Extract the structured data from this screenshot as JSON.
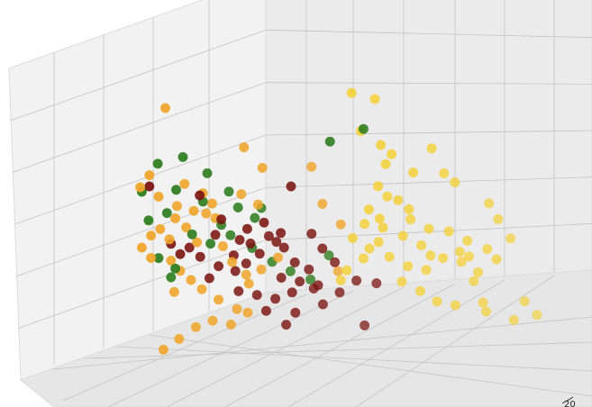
{
  "chart_data": {
    "type": "scatter",
    "title": "",
    "xlabel": "",
    "ylabel": "",
    "zlabel": "",
    "projection": "3d",
    "grid": true,
    "legend": "none",
    "visible_tick_labels": [
      "20"
    ],
    "series": [
      {
        "color": "#2e7d1f",
        "points": [
          [
            0.62,
            0.12,
            0.78
          ],
          [
            0.7,
            0.16,
            0.82
          ],
          [
            0.18,
            0.05,
            0.7
          ],
          [
            0.24,
            0.08,
            0.72
          ],
          [
            0.3,
            0.1,
            0.66
          ],
          [
            0.22,
            0.09,
            0.6
          ],
          [
            0.2,
            0.07,
            0.52
          ],
          [
            0.16,
            0.03,
            0.5
          ],
          [
            0.28,
            0.14,
            0.55
          ],
          [
            0.34,
            0.18,
            0.58
          ],
          [
            0.36,
            0.2,
            0.52
          ],
          [
            0.4,
            0.22,
            0.48
          ],
          [
            0.32,
            0.18,
            0.46
          ],
          [
            0.26,
            0.1,
            0.44
          ],
          [
            0.3,
            0.14,
            0.4
          ],
          [
            0.34,
            0.2,
            0.42
          ],
          [
            0.38,
            0.28,
            0.36
          ],
          [
            0.42,
            0.34,
            0.3
          ],
          [
            0.46,
            0.38,
            0.26
          ],
          [
            0.5,
            0.44,
            0.22
          ],
          [
            0.18,
            0.06,
            0.36
          ],
          [
            0.22,
            0.08,
            0.32
          ],
          [
            0.54,
            0.48,
            0.3
          ],
          [
            0.14,
            0.04,
            0.6
          ],
          [
            0.2,
            0.12,
            0.28
          ],
          [
            0.4,
            0.3,
            0.5
          ]
        ]
      },
      {
        "color": "#7a1410",
        "points": [
          [
            0.5,
            0.2,
            0.6
          ],
          [
            0.16,
            0.04,
            0.62
          ],
          [
            0.28,
            0.1,
            0.58
          ],
          [
            0.32,
            0.18,
            0.48
          ],
          [
            0.38,
            0.22,
            0.44
          ],
          [
            0.42,
            0.24,
            0.46
          ],
          [
            0.46,
            0.26,
            0.42
          ],
          [
            0.44,
            0.3,
            0.38
          ],
          [
            0.4,
            0.28,
            0.34
          ],
          [
            0.36,
            0.3,
            0.3
          ],
          [
            0.34,
            0.26,
            0.28
          ],
          [
            0.3,
            0.24,
            0.3
          ],
          [
            0.26,
            0.2,
            0.34
          ],
          [
            0.24,
            0.16,
            0.38
          ],
          [
            0.2,
            0.12,
            0.4
          ],
          [
            0.22,
            0.14,
            0.36
          ],
          [
            0.44,
            0.36,
            0.24
          ],
          [
            0.48,
            0.4,
            0.22
          ],
          [
            0.5,
            0.42,
            0.26
          ],
          [
            0.52,
            0.44,
            0.2
          ],
          [
            0.46,
            0.4,
            0.18
          ],
          [
            0.42,
            0.38,
            0.16
          ],
          [
            0.38,
            0.34,
            0.18
          ],
          [
            0.34,
            0.3,
            0.2
          ],
          [
            0.4,
            0.36,
            0.12
          ],
          [
            0.46,
            0.44,
            0.1
          ],
          [
            0.52,
            0.5,
            0.12
          ],
          [
            0.56,
            0.52,
            0.16
          ],
          [
            0.6,
            0.54,
            0.2
          ],
          [
            0.64,
            0.6,
            0.18
          ],
          [
            0.44,
            0.42,
            0.06
          ],
          [
            0.6,
            0.64,
            0.02
          ],
          [
            0.3,
            0.2,
            0.42
          ],
          [
            0.36,
            0.22,
            0.4
          ],
          [
            0.48,
            0.34,
            0.3
          ],
          [
            0.54,
            0.4,
            0.34
          ],
          [
            0.28,
            0.22,
            0.26
          ],
          [
            0.5,
            0.48,
            0.18
          ],
          [
            0.56,
            0.46,
            0.28
          ],
          [
            0.42,
            0.3,
            0.4
          ],
          [
            0.38,
            0.26,
            0.38
          ],
          [
            0.46,
            0.3,
            0.36
          ],
          [
            0.52,
            0.36,
            0.4
          ],
          [
            0.34,
            0.24,
            0.34
          ]
        ]
      },
      {
        "color": "#f0a52a",
        "points": [
          [
            0.2,
            0.05,
            0.9
          ],
          [
            0.38,
            0.18,
            0.74
          ],
          [
            0.42,
            0.22,
            0.66
          ],
          [
            0.52,
            0.36,
            0.64
          ],
          [
            0.16,
            0.04,
            0.66
          ],
          [
            0.14,
            0.02,
            0.62
          ],
          [
            0.18,
            0.06,
            0.58
          ],
          [
            0.24,
            0.1,
            0.62
          ],
          [
            0.28,
            0.14,
            0.58
          ],
          [
            0.3,
            0.16,
            0.54
          ],
          [
            0.22,
            0.1,
            0.54
          ],
          [
            0.18,
            0.08,
            0.46
          ],
          [
            0.16,
            0.06,
            0.44
          ],
          [
            0.2,
            0.1,
            0.42
          ],
          [
            0.24,
            0.12,
            0.46
          ],
          [
            0.26,
            0.16,
            0.4
          ],
          [
            0.14,
            0.04,
            0.4
          ],
          [
            0.16,
            0.06,
            0.36
          ],
          [
            0.2,
            0.12,
            0.34
          ],
          [
            0.22,
            0.14,
            0.3
          ],
          [
            0.24,
            0.18,
            0.26
          ],
          [
            0.2,
            0.16,
            0.22
          ],
          [
            0.26,
            0.22,
            0.22
          ],
          [
            0.3,
            0.24,
            0.18
          ],
          [
            0.34,
            0.28,
            0.14
          ],
          [
            0.28,
            0.26,
            0.1
          ],
          [
            0.24,
            0.24,
            0.08
          ],
          [
            0.2,
            0.22,
            0.04
          ],
          [
            0.32,
            0.3,
            0.08
          ],
          [
            0.36,
            0.32,
            0.12
          ],
          [
            0.54,
            0.4,
            0.5
          ],
          [
            0.58,
            0.44,
            0.42
          ],
          [
            0.3,
            0.2,
            0.48
          ],
          [
            0.36,
            0.24,
            0.56
          ],
          [
            0.4,
            0.26,
            0.52
          ],
          [
            0.18,
            0.12,
            0.02
          ],
          [
            0.34,
            0.22,
            0.32
          ],
          [
            0.38,
            0.24,
            0.24
          ],
          [
            0.56,
            0.5,
            0.24
          ],
          [
            0.28,
            0.18,
            0.5
          ],
          [
            0.22,
            0.08,
            0.5
          ],
          [
            0.26,
            0.12,
            0.52
          ],
          [
            0.32,
            0.2,
            0.38
          ],
          [
            0.4,
            0.3,
            0.28
          ],
          [
            0.44,
            0.32,
            0.32
          ],
          [
            0.36,
            0.3,
            0.26
          ]
        ]
      },
      {
        "color": "#f5d033",
        "points": [
          [
            0.66,
            0.2,
            0.94
          ],
          [
            0.7,
            0.3,
            0.9
          ],
          [
            0.68,
            0.22,
            0.8
          ],
          [
            0.72,
            0.28,
            0.74
          ],
          [
            0.74,
            0.32,
            0.7
          ],
          [
            0.72,
            0.34,
            0.66
          ],
          [
            0.82,
            0.44,
            0.7
          ],
          [
            0.78,
            0.4,
            0.62
          ],
          [
            0.84,
            0.5,
            0.6
          ],
          [
            0.86,
            0.54,
            0.56
          ],
          [
            0.7,
            0.34,
            0.58
          ],
          [
            0.72,
            0.36,
            0.54
          ],
          [
            0.74,
            0.4,
            0.52
          ],
          [
            0.68,
            0.32,
            0.5
          ],
          [
            0.7,
            0.36,
            0.46
          ],
          [
            0.76,
            0.44,
            0.48
          ],
          [
            0.8,
            0.5,
            0.4
          ],
          [
            0.84,
            0.56,
            0.38
          ],
          [
            0.88,
            0.6,
            0.34
          ],
          [
            0.92,
            0.66,
            0.3
          ],
          [
            0.94,
            0.68,
            0.26
          ],
          [
            0.9,
            0.64,
            0.22
          ],
          [
            0.86,
            0.62,
            0.26
          ],
          [
            0.82,
            0.58,
            0.28
          ],
          [
            0.78,
            0.56,
            0.24
          ],
          [
            0.74,
            0.52,
            0.26
          ],
          [
            0.7,
            0.48,
            0.3
          ],
          [
            0.72,
            0.54,
            0.2
          ],
          [
            0.76,
            0.58,
            0.16
          ],
          [
            0.8,
            0.6,
            0.12
          ],
          [
            0.84,
            0.64,
            0.1
          ],
          [
            0.9,
            0.74,
            0.06
          ],
          [
            0.96,
            0.8,
            0.02
          ],
          [
            0.98,
            0.84,
            0.08
          ],
          [
            1.0,
            0.9,
            0.02
          ],
          [
            0.94,
            0.7,
            0.4
          ],
          [
            0.92,
            0.68,
            0.46
          ],
          [
            0.96,
            0.76,
            0.32
          ],
          [
            0.88,
            0.68,
            0.18
          ],
          [
            0.62,
            0.4,
            0.38
          ],
          [
            0.66,
            0.42,
            0.34
          ],
          [
            0.64,
            0.44,
            0.3
          ],
          [
            0.6,
            0.42,
            0.26
          ],
          [
            0.58,
            0.44,
            0.22
          ],
          [
            0.7,
            0.4,
            0.42
          ],
          [
            0.74,
            0.46,
            0.38
          ],
          [
            0.78,
            0.5,
            0.34
          ],
          [
            0.8,
            0.52,
            0.3
          ],
          [
            0.86,
            0.6,
            0.3
          ],
          [
            0.88,
            0.62,
            0.28
          ],
          [
            0.66,
            0.36,
            0.44
          ],
          [
            0.76,
            0.46,
            0.44
          ],
          [
            0.9,
            0.7,
            0.1
          ],
          [
            0.68,
            0.44,
            0.36
          ]
        ]
      }
    ]
  }
}
